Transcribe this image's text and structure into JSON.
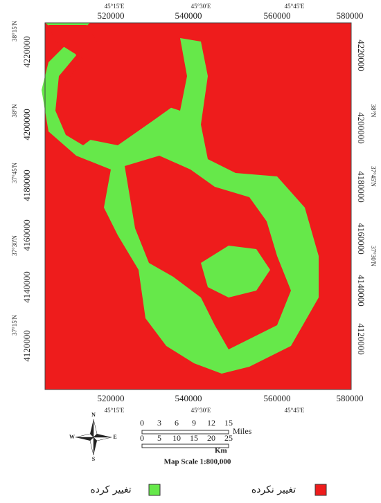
{
  "map": {
    "top": {
      "utm": [
        "520000",
        "540000",
        "560000",
        "580000"
      ],
      "geo": [
        "45°15'E",
        "45°30'E",
        "45°45'E"
      ]
    },
    "bottom": {
      "utm": [
        "520000",
        "540000",
        "560000",
        "580000"
      ],
      "geo": [
        "45°15'E",
        "45°30'E",
        "45°45'E"
      ]
    },
    "left": [
      "38°15'N",
      "4220000",
      "38°N",
      "4200000",
      "37°45'N",
      "4180000",
      "37°30'N",
      "4160000",
      "4140000",
      "37°15'N",
      "4120000"
    ],
    "right": [
      "4220000",
      "38°N",
      "4200000",
      "37°45'N",
      "4180000",
      "4160000",
      "37°30'N",
      "4140000",
      "4120000"
    ],
    "compass": {
      "n": "N",
      "e": "E",
      "s": "S",
      "w": "W"
    },
    "scale_bar": {
      "miles_ticks": [
        "0",
        "3",
        "6",
        "9",
        "12",
        "15"
      ],
      "miles_unit": "Miles",
      "km_ticks": [
        "0",
        "5",
        "10",
        "15",
        "20",
        "25"
      ],
      "km_unit": "Km",
      "scale": "Map Scale 1:800,000"
    },
    "legend": [
      {
        "label": "تغییر کرده",
        "color": "#66e84a"
      },
      {
        "label": "تغییر نکرده",
        "color": "#ee1c1c"
      }
    ]
  }
}
